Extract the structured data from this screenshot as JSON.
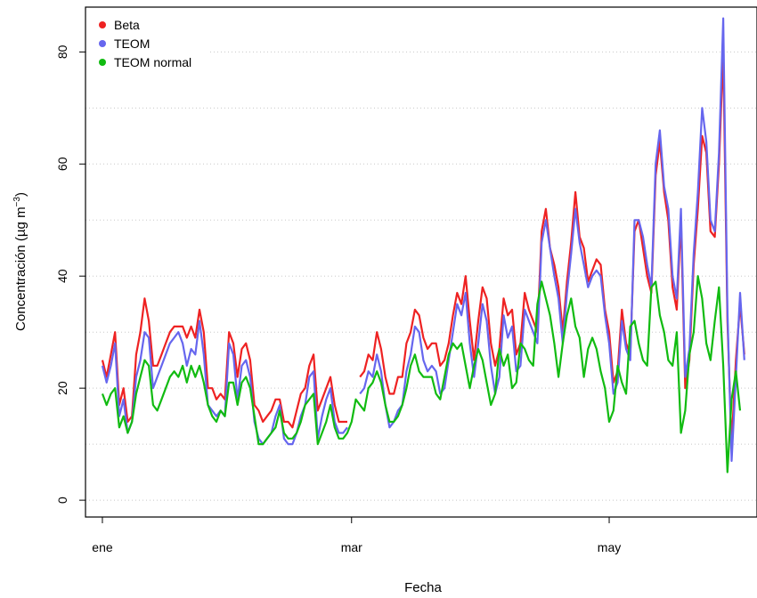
{
  "chart_data": {
    "type": "line",
    "title": "",
    "xlabel": "Fecha",
    "ylabel": "Concentración (µg m⁻³)",
    "ylabel_base": "Concentración (µg m",
    "ylabel_sup": "−3",
    "ylabel_close": ")",
    "x_ticks": [
      "ene",
      "mar",
      "may"
    ],
    "y_ticks": [
      "0",
      "20",
      "40",
      "60",
      "80"
    ],
    "ylim": [
      -3,
      88
    ],
    "xlim": [
      -4,
      155
    ],
    "grid": "horizontal dotted",
    "legend_position": "top-left",
    "x_tick_positions": [
      0,
      59,
      120
    ],
    "series": [
      {
        "name": "Beta",
        "color": "#ee2222",
        "values": [
          25,
          22,
          26,
          30,
          17,
          20,
          14,
          15,
          26,
          30,
          36,
          32,
          24,
          24,
          26,
          28,
          30,
          31,
          31,
          31,
          29,
          31,
          29,
          34,
          30,
          20,
          20,
          18,
          19,
          18,
          30,
          28,
          22,
          27,
          28,
          25,
          17,
          16,
          14,
          15,
          16,
          18,
          18,
          14,
          14,
          13,
          16,
          19,
          20,
          24,
          26,
          16,
          18,
          20,
          22,
          17,
          14,
          14,
          14,
          null,
          null,
          22,
          23,
          26,
          25,
          30,
          27,
          22,
          19,
          19,
          22,
          22,
          28,
          30,
          34,
          33,
          29,
          27,
          28,
          28,
          24,
          25,
          28,
          33,
          37,
          35,
          40,
          32,
          25,
          32,
          38,
          36,
          28,
          24,
          27,
          36,
          33,
          34,
          26,
          28,
          37,
          34,
          32,
          30,
          48,
          52,
          45,
          42,
          38,
          30,
          39,
          46,
          55,
          47,
          45,
          39,
          41,
          43,
          42,
          34,
          30,
          21,
          23,
          34,
          28,
          26,
          48,
          50,
          45,
          40,
          37,
          58,
          64,
          55,
          50,
          38,
          34,
          50,
          20,
          25,
          42,
          52,
          65,
          62,
          48,
          47,
          60,
          80,
          32,
          10,
          25,
          35,
          26
        ]
      },
      {
        "name": "TEOM",
        "color": "#6666ee",
        "values": [
          24,
          21,
          24,
          28,
          15,
          18,
          12,
          14,
          22,
          25,
          30,
          29,
          20,
          22,
          24,
          26,
          28,
          29,
          30,
          28,
          24,
          27,
          26,
          32,
          26,
          17,
          16,
          15,
          16,
          15,
          28,
          26,
          18,
          24,
          25,
          22,
          14,
          11,
          10,
          11,
          12,
          15,
          17,
          11,
          10,
          10,
          12,
          15,
          17,
          22,
          23,
          11,
          15,
          18,
          20,
          14,
          12,
          12,
          13,
          null,
          null,
          19,
          20,
          23,
          22,
          26,
          23,
          17,
          13,
          14,
          16,
          17,
          23,
          26,
          31,
          30,
          25,
          23,
          24,
          23,
          19,
          20,
          25,
          30,
          35,
          33,
          37,
          28,
          22,
          28,
          35,
          32,
          24,
          19,
          22,
          33,
          29,
          31,
          23,
          24,
          34,
          32,
          30,
          28,
          46,
          50,
          45,
          40,
          36,
          28,
          37,
          44,
          52,
          46,
          42,
          38,
          40,
          41,
          40,
          33,
          28,
          19,
          21,
          32,
          27,
          25,
          50,
          50,
          47,
          42,
          38,
          60,
          66,
          56,
          52,
          40,
          36,
          52,
          22,
          27,
          44,
          55,
          70,
          64,
          50,
          48,
          62,
          86,
          34,
          7,
          22,
          37,
          25
        ]
      },
      {
        "name": "TEOM normal",
        "color": "#11bb11",
        "values": [
          19,
          17,
          19,
          20,
          13,
          15,
          12,
          14,
          19,
          22,
          25,
          24,
          17,
          16,
          18,
          20,
          22,
          23,
          22,
          24,
          21,
          24,
          22,
          24,
          21,
          17,
          15,
          14,
          16,
          15,
          21,
          21,
          17,
          21,
          22,
          20,
          15,
          10,
          10,
          11,
          12,
          13,
          16,
          12,
          11,
          11,
          12,
          14,
          17,
          18,
          19,
          10,
          12,
          14,
          17,
          13,
          11,
          11,
          12,
          14,
          18,
          17,
          16,
          20,
          21,
          23,
          21,
          17,
          14,
          14,
          15,
          17,
          20,
          24,
          26,
          23,
          22,
          22,
          22,
          19,
          18,
          22,
          26,
          28,
          27,
          28,
          24,
          20,
          24,
          27,
          25,
          21,
          17,
          19,
          27,
          24,
          26,
          20,
          21,
          28,
          27,
          25,
          24,
          35,
          39,
          36,
          33,
          28,
          22,
          28,
          33,
          36,
          31,
          29,
          22,
          27,
          29,
          27,
          23,
          20,
          14,
          16,
          24,
          21,
          19,
          31,
          32,
          28,
          25,
          24,
          38,
          39,
          33,
          30,
          25,
          24,
          30,
          12,
          16,
          26,
          30,
          40,
          36,
          28,
          25,
          32,
          38,
          24,
          5,
          18,
          23,
          16
        ]
      }
    ]
  }
}
